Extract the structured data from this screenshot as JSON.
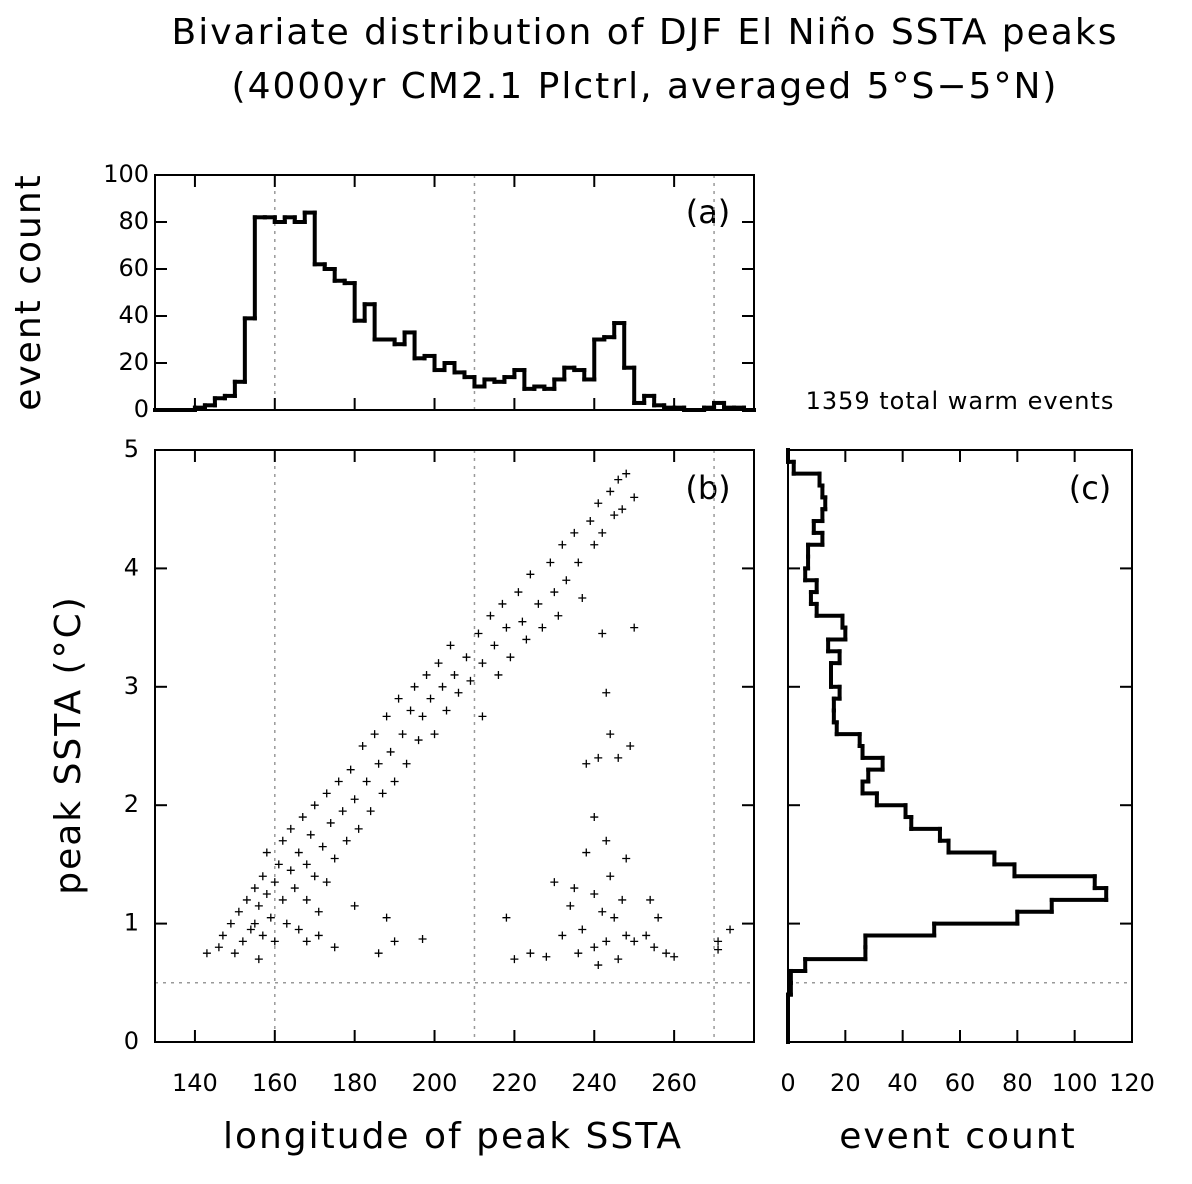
{
  "title": [
    "Bivariate distribution of DJF El Niño SSTA peaks",
    "(4000yr CM2.1 Plctrl, averaged 5°S−5°N)"
  ],
  "chart_data": [
    {
      "type": "histogram",
      "annotation": "(a)",
      "ylabel": "event count",
      "color": "#000000",
      "bins": [
        130,
        132.5,
        135,
        137.5,
        140,
        142.5,
        145,
        147.5,
        150,
        152.5,
        155,
        157.5,
        160,
        162.5,
        165,
        167.5,
        170,
        172.5,
        175,
        177.5,
        180,
        182.5,
        185,
        187.5,
        190,
        192.5,
        195,
        197.5,
        200,
        202.5,
        205,
        207.5,
        210,
        212.5,
        215,
        217.5,
        220,
        222.5,
        225,
        227.5,
        230,
        232.5,
        235,
        237.5,
        240,
        242.5,
        245,
        247.5,
        250,
        252.5,
        255,
        257.5,
        260,
        262.5,
        265,
        267.5,
        270,
        272.5,
        275,
        277.5,
        280
      ],
      "values": [
        0,
        0,
        0,
        0,
        1,
        2,
        5,
        6,
        12,
        39,
        82,
        82,
        80,
        82,
        80,
        84,
        62,
        60,
        55,
        54,
        38,
        45,
        30,
        30,
        28,
        33,
        22,
        23,
        17,
        20,
        16,
        14,
        10,
        13,
        12,
        14,
        17,
        9,
        10,
        9,
        13,
        18,
        17,
        13,
        30,
        31,
        37,
        18,
        3,
        6,
        2,
        1,
        1,
        0,
        0,
        1,
        3,
        1,
        1,
        0
      ],
      "ylim": [
        0,
        100
      ],
      "yticks": [
        0,
        20,
        40,
        60,
        80,
        100
      ]
    },
    {
      "type": "scatter",
      "annotation": "(b)",
      "xlabel": "longitude of peak SSTA",
      "ylabel": "peak SSTA (°C)",
      "color": "#000000",
      "x": [
        143,
        146,
        147,
        149,
        150,
        151,
        152,
        153,
        154,
        155,
        155,
        156,
        156,
        157,
        157,
        158,
        158,
        159,
        160,
        160,
        161,
        162,
        162,
        163,
        164,
        164,
        165,
        166,
        166,
        167,
        168,
        168,
        169,
        170,
        170,
        171,
        172,
        173,
        173,
        174,
        175,
        176,
        177,
        178,
        179,
        180,
        181,
        182,
        183,
        184,
        185,
        186,
        187,
        188,
        189,
        190,
        191,
        192,
        193,
        194,
        195,
        196,
        197,
        198,
        199,
        200,
        201,
        202,
        203,
        204,
        205,
        206,
        208,
        209,
        211,
        212,
        214,
        215,
        216,
        217,
        218,
        219,
        221,
        222,
        223,
        224,
        226,
        227,
        229,
        230,
        231,
        232,
        233,
        235,
        236,
        237,
        239,
        240,
        241,
        242,
        244,
        245,
        246,
        247,
        248,
        250,
        168,
        171,
        175,
        180,
        186,
        188,
        190,
        197,
        212,
        218,
        220,
        224,
        228,
        230,
        232,
        234,
        235,
        236,
        237,
        238,
        238,
        240,
        240,
        240,
        241,
        241,
        242,
        242,
        243,
        243,
        243,
        244,
        244,
        245,
        246,
        246,
        247,
        248,
        248,
        249,
        250,
        250,
        253,
        254,
        255,
        256,
        258,
        260,
        271,
        271,
        274
      ],
      "y": [
        0.75,
        0.8,
        0.9,
        1.0,
        0.75,
        1.1,
        0.85,
        1.2,
        0.95,
        1.3,
        1.0,
        0.7,
        1.15,
        1.4,
        0.9,
        1.25,
        1.6,
        1.05,
        1.35,
        0.85,
        1.5,
        1.2,
        1.7,
        1.0,
        1.45,
        1.8,
        1.3,
        1.6,
        0.95,
        1.9,
        1.5,
        1.2,
        1.75,
        1.4,
        2.0,
        1.1,
        1.65,
        2.1,
        1.35,
        1.85,
        1.55,
        2.2,
        1.95,
        1.7,
        2.3,
        2.05,
        1.8,
        2.5,
        2.2,
        1.95,
        2.6,
        2.35,
        2.1,
        2.75,
        2.45,
        2.2,
        2.9,
        2.6,
        2.35,
        2.8,
        3.0,
        2.55,
        2.75,
        3.1,
        2.9,
        2.6,
        3.2,
        3.0,
        2.8,
        3.35,
        3.1,
        2.95,
        3.25,
        3.05,
        3.45,
        3.2,
        3.6,
        3.35,
        3.1,
        3.7,
        3.5,
        3.25,
        3.8,
        3.55,
        3.4,
        3.95,
        3.7,
        3.5,
        4.05,
        3.8,
        3.6,
        4.2,
        3.9,
        4.3,
        4.05,
        3.75,
        4.4,
        4.2,
        4.55,
        4.3,
        4.65,
        4.45,
        4.75,
        4.5,
        4.8,
        4.6,
        0.85,
        0.9,
        0.8,
        1.15,
        0.75,
        1.05,
        0.85,
        0.87,
        2.75,
        1.05,
        0.7,
        0.75,
        0.72,
        1.35,
        0.9,
        1.15,
        1.3,
        0.75,
        0.95,
        1.6,
        2.35,
        0.8,
        1.25,
        1.9,
        2.4,
        0.65,
        1.1,
        3.45,
        2.95,
        1.7,
        0.85,
        1.4,
        2.6,
        1.05,
        2.4,
        0.7,
        1.2,
        1.55,
        0.9,
        2.5,
        0.85,
        3.5,
        0.9,
        1.2,
        0.8,
        1.05,
        0.75,
        0.72,
        0.85,
        0.78,
        0.95
      ],
      "xlim": [
        130,
        280
      ],
      "xticks": [
        140,
        160,
        180,
        200,
        220,
        240,
        260
      ],
      "ylim": [
        0,
        5
      ],
      "yticks": [
        0,
        1,
        2,
        3,
        4,
        5
      ],
      "vlines": [
        160,
        210,
        270
      ],
      "hline": 0.5
    },
    {
      "type": "histogram",
      "orientation": "horizontal",
      "annotation": "(c)",
      "note": "1359 total warm events",
      "xlabel": "event count",
      "color": "#000000",
      "bins": [
        0,
        0.1,
        0.2,
        0.3,
        0.4,
        0.5,
        0.6,
        0.7,
        0.8,
        0.9,
        1.0,
        1.1,
        1.2,
        1.3,
        1.4,
        1.5,
        1.6,
        1.7,
        1.8,
        1.9,
        2.0,
        2.1,
        2.2,
        2.3,
        2.4,
        2.5,
        2.6,
        2.7,
        2.8,
        2.9,
        3.0,
        3.1,
        3.2,
        3.3,
        3.4,
        3.5,
        3.6,
        3.7,
        3.8,
        3.9,
        4.0,
        4.1,
        4.2,
        4.3,
        4.4,
        4.5,
        4.6,
        4.7,
        4.8,
        4.9,
        5.0
      ],
      "values": [
        0,
        0,
        0,
        0,
        1,
        1,
        6,
        27,
        27,
        51,
        80,
        92,
        111,
        107,
        79,
        72,
        56,
        53,
        43,
        41,
        31,
        26,
        28,
        33,
        26,
        25,
        17,
        16,
        16,
        18,
        15,
        15,
        18,
        14,
        20,
        19,
        10,
        8,
        10,
        6,
        7,
        7,
        12,
        9,
        12,
        13,
        12,
        11,
        2,
        0
      ],
      "xlim": [
        0,
        120
      ],
      "xticks": [
        0,
        20,
        40,
        60,
        80,
        100,
        120
      ]
    }
  ]
}
